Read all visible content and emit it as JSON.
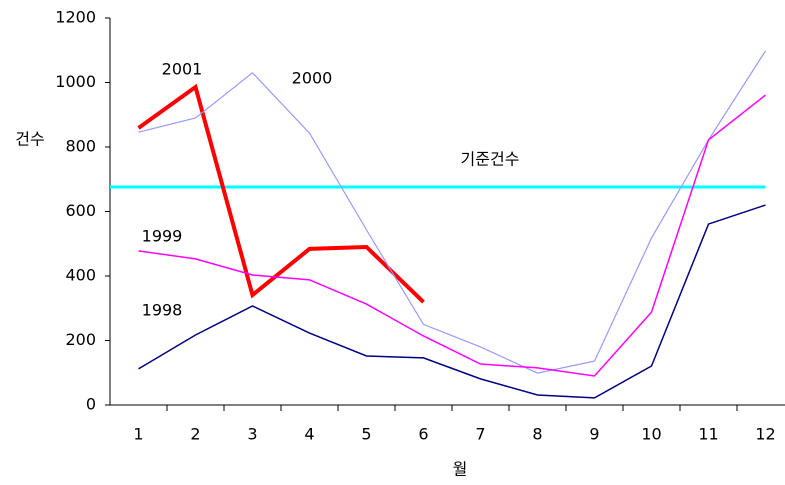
{
  "chart_data": {
    "type": "line",
    "x_label": "월",
    "y_label": "건수",
    "categories": [
      "1",
      "2",
      "3",
      "4",
      "5",
      "6",
      "7",
      "8",
      "9",
      "10",
      "11",
      "12"
    ],
    "ylim": [
      0,
      1200
    ],
    "yticks": [
      0,
      200,
      400,
      600,
      800,
      1000,
      1200
    ],
    "series": [
      {
        "name": "2001",
        "color": "#ff0000",
        "values": [
          859,
          986,
          341,
          484,
          490,
          319,
          null,
          null,
          null,
          null,
          null,
          null
        ]
      },
      {
        "name": "2000",
        "color": "#9999ff",
        "values": [
          846,
          890,
          1030,
          843,
          543,
          250,
          180,
          99,
          136,
          518,
          822,
          1098
        ]
      },
      {
        "name": "1999",
        "color": "#ff00ff",
        "values": [
          478,
          453,
          403,
          388,
          313,
          214,
          127,
          115,
          90,
          288,
          822,
          961
        ]
      },
      {
        "name": "1998",
        "color": "#000080",
        "values": [
          112,
          217,
          307,
          223,
          152,
          146,
          81,
          31,
          22,
          121,
          561,
          620
        ]
      }
    ],
    "reference": {
      "name": "기준건수",
      "value": 676,
      "color": "#00ffff"
    }
  }
}
